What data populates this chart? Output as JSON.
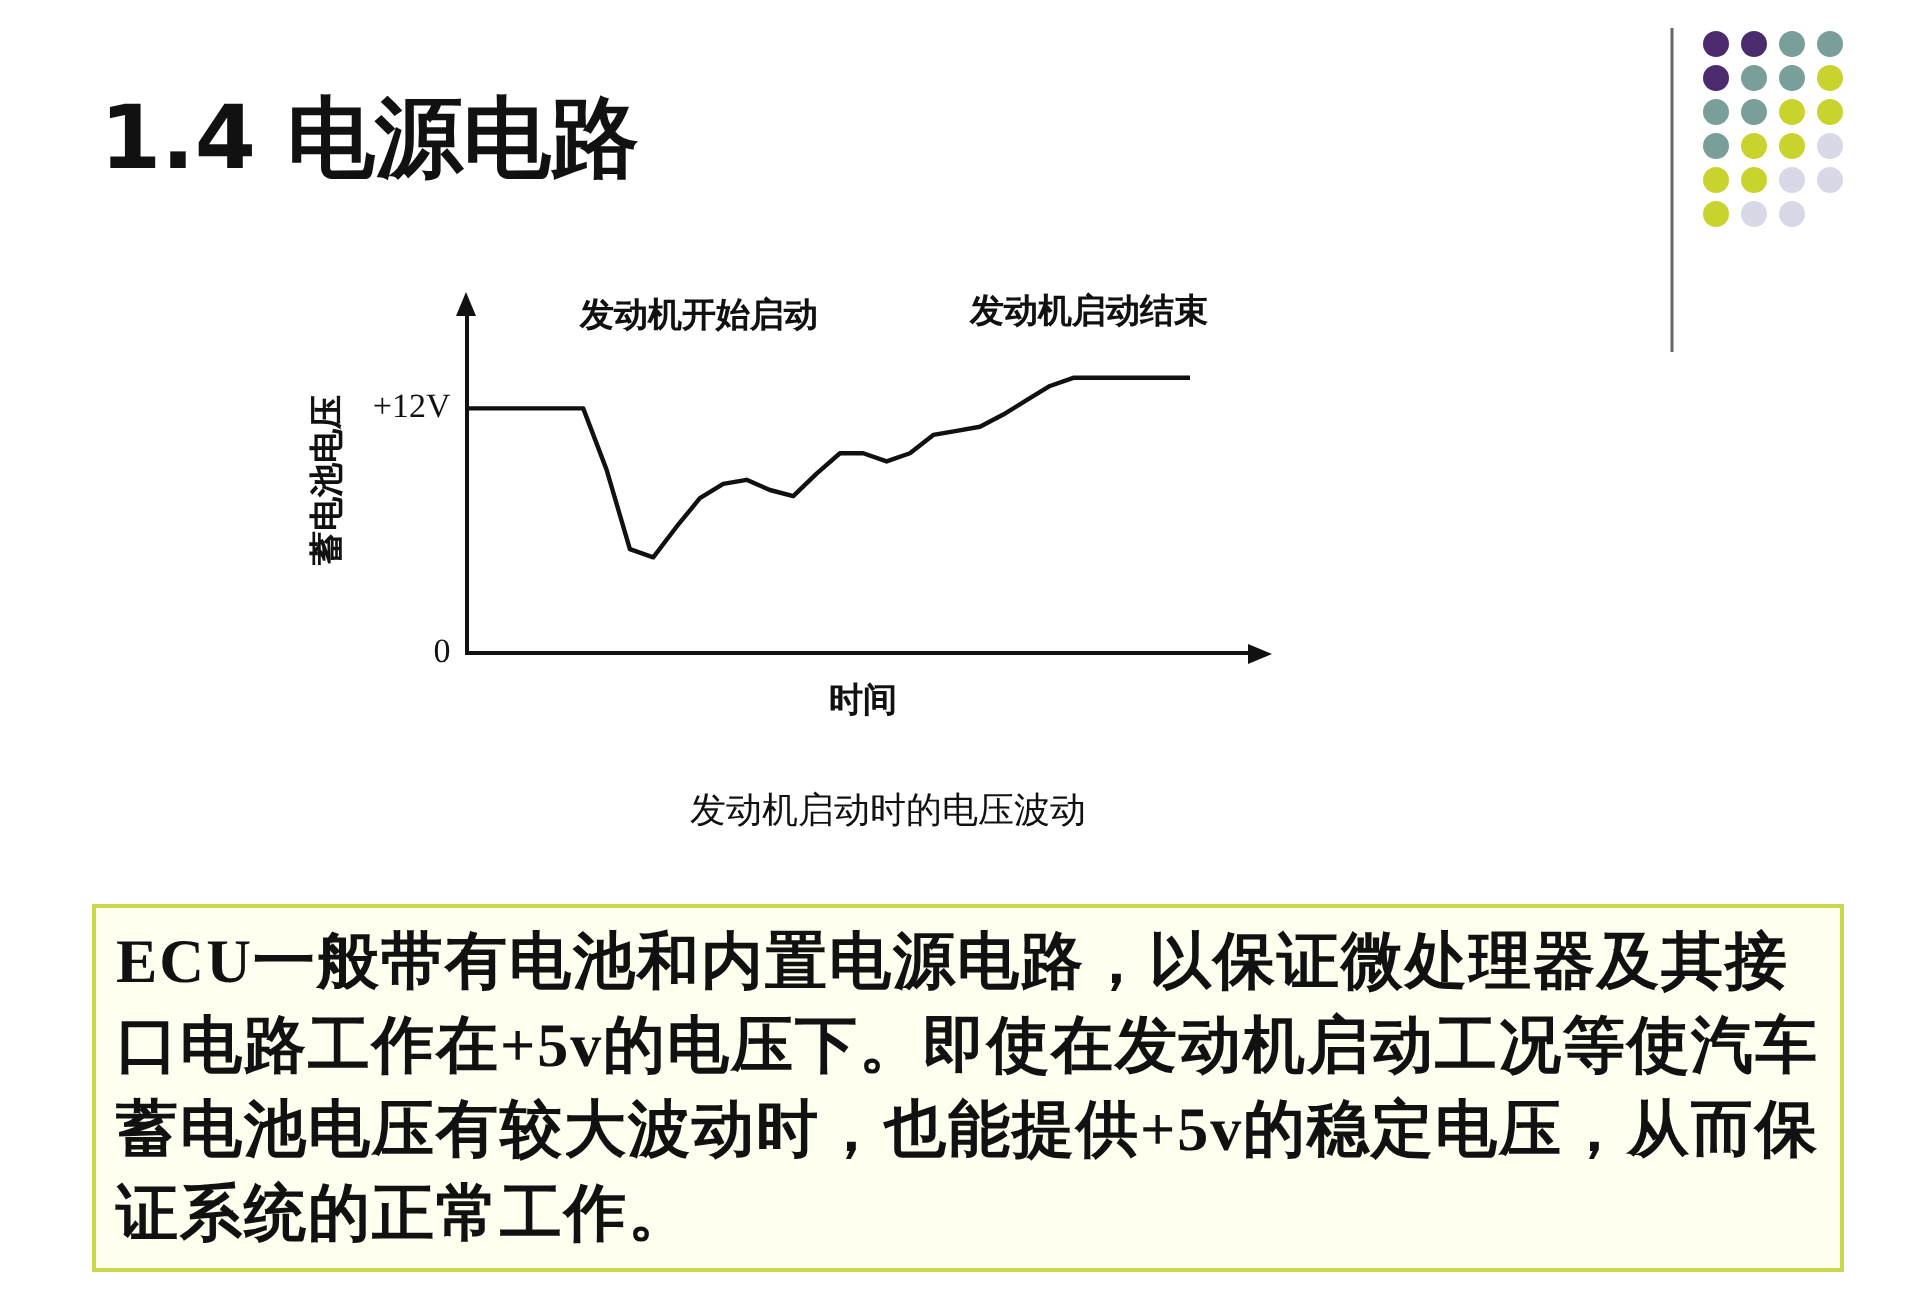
{
  "chart_data": {
    "type": "line",
    "title": "1.4 电源电路",
    "ylabel": "蓄电池电压",
    "xlabel": "时间",
    "annotations": [
      "发动机开始启动",
      "发动机启动结束",
      "发动机启动时的电压波动",
      "ECU一般带有电池和内置电源电路，以保证微处理器及其接口电路工作在+5v的电压下。即使在发动机启动工况等使汽车蓄电池电压有较大波动时，也能提供+5v的稳定电压，从而保证系统的正常工作。"
    ],
    "categories": [
      null,
      null,
      null,
      null,
      null,
      null,
      null,
      null,
      null,
      null,
      null,
      null,
      null,
      null,
      null,
      null,
      null,
      null,
      null,
      null,
      null,
      null,
      null,
      null,
      null,
      null,
      null,
      null,
      null,
      null,
      null,
      null,
      null,
      null,
      null
    ],
    "series": [
      {
        "color": "#111111",
        "values": [
          12,
          12,
          12,
          12,
          12,
          12,
          9.0,
          5.1,
          4.7,
          6.2,
          7.6,
          8.3,
          8.5,
          8.0,
          7.7,
          8.8,
          9.8,
          9.8,
          9.4,
          9.8,
          10.7,
          10.9,
          11.1,
          11.7,
          12.4,
          13.1,
          13.5,
          13.5,
          13.5,
          13.5,
          13.5,
          13.5,
          null,
          null,
          null
        ]
      }
    ],
    "ylim": [
      0,
      17
    ],
    "yticks": [
      0,
      {
        "value": 12,
        "label": "+12V"
      }
    ],
    "tick_labels": "y",
    "grid": false,
    "legend": false,
    "marker": "none",
    "line_style": "solid"
  }
}
